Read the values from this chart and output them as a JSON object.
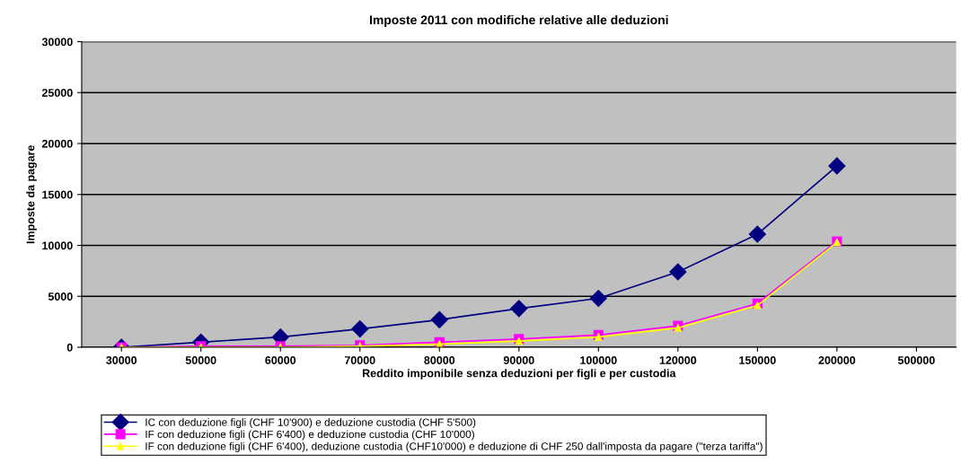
{
  "chart_data": {
    "type": "line",
    "title": "Imposte 2011 con modifiche relative alle deduzioni",
    "xlabel": "Reddito imponibile senza deduzioni per figli e per custodia",
    "ylabel": "Imposte da pagare",
    "categories": [
      "30000",
      "50000",
      "60000",
      "70000",
      "80000",
      "90000",
      "100000",
      "120000",
      "150000",
      "200000",
      "500000"
    ],
    "series": [
      {
        "name": "IC con deduzione figli (CHF 10'900) e deduzione custodia (CHF 5'500)",
        "color": "#000080",
        "marker": "diamond",
        "values": [
          0,
          500,
          1000,
          1800,
          2700,
          3800,
          4800,
          7400,
          11100,
          17800,
          null
        ]
      },
      {
        "name": "IF con deduzione figli (CHF 6'400) e deduzione custodia (CHF 10'000)",
        "color": "#ff00ff",
        "marker": "square",
        "values": [
          0,
          100,
          100,
          200,
          500,
          800,
          1200,
          2100,
          4300,
          10400,
          null
        ]
      },
      {
        "name": "IF con deduzione figli (CHF 6'400), deduzione custodia (CHF10'000) e deduzione di CHF 250 dall'imposta da pagare (\"terza tariffa\")",
        "color": "#ffff00",
        "marker": "triangle",
        "values": [
          0,
          0,
          0,
          100,
          300,
          600,
          1000,
          1900,
          4100,
          10300,
          null
        ]
      }
    ],
    "ylim": [
      0,
      30000
    ],
    "yticks": [
      0,
      5000,
      10000,
      15000,
      20000,
      25000,
      30000
    ],
    "grid": "y",
    "legend": "bottom"
  }
}
